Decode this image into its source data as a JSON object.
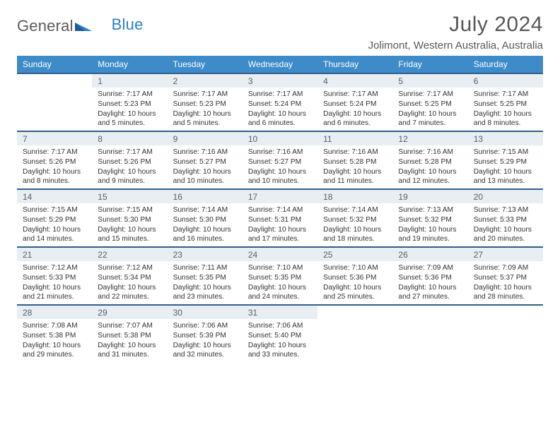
{
  "logo": {
    "word1": "General",
    "word2": "Blue"
  },
  "title": "July 2024",
  "location": "Jolimont, Western Australia, Australia",
  "day_headers": [
    "Sunday",
    "Monday",
    "Tuesday",
    "Wednesday",
    "Thursday",
    "Friday",
    "Saturday"
  ],
  "colors": {
    "header_bg": "#3d8cc9",
    "header_text": "#ffffff",
    "row_border": "#315f8a",
    "daynum_bg": "#e9eef3",
    "daynum_text": "#56606a",
    "title_text": "#585858",
    "logo_gray": "#5a5a5a",
    "logo_blue": "#2a7ec4",
    "body_text": "#333333"
  },
  "weeks": [
    [
      {
        "n": "",
        "sr": "",
        "ss": "",
        "d1": "",
        "d2": ""
      },
      {
        "n": "1",
        "sr": "Sunrise: 7:17 AM",
        "ss": "Sunset: 5:23 PM",
        "d1": "Daylight: 10 hours",
        "d2": "and 5 minutes."
      },
      {
        "n": "2",
        "sr": "Sunrise: 7:17 AM",
        "ss": "Sunset: 5:23 PM",
        "d1": "Daylight: 10 hours",
        "d2": "and 5 minutes."
      },
      {
        "n": "3",
        "sr": "Sunrise: 7:17 AM",
        "ss": "Sunset: 5:24 PM",
        "d1": "Daylight: 10 hours",
        "d2": "and 6 minutes."
      },
      {
        "n": "4",
        "sr": "Sunrise: 7:17 AM",
        "ss": "Sunset: 5:24 PM",
        "d1": "Daylight: 10 hours",
        "d2": "and 6 minutes."
      },
      {
        "n": "5",
        "sr": "Sunrise: 7:17 AM",
        "ss": "Sunset: 5:25 PM",
        "d1": "Daylight: 10 hours",
        "d2": "and 7 minutes."
      },
      {
        "n": "6",
        "sr": "Sunrise: 7:17 AM",
        "ss": "Sunset: 5:25 PM",
        "d1": "Daylight: 10 hours",
        "d2": "and 8 minutes."
      }
    ],
    [
      {
        "n": "7",
        "sr": "Sunrise: 7:17 AM",
        "ss": "Sunset: 5:26 PM",
        "d1": "Daylight: 10 hours",
        "d2": "and 8 minutes."
      },
      {
        "n": "8",
        "sr": "Sunrise: 7:17 AM",
        "ss": "Sunset: 5:26 PM",
        "d1": "Daylight: 10 hours",
        "d2": "and 9 minutes."
      },
      {
        "n": "9",
        "sr": "Sunrise: 7:16 AM",
        "ss": "Sunset: 5:27 PM",
        "d1": "Daylight: 10 hours",
        "d2": "and 10 minutes."
      },
      {
        "n": "10",
        "sr": "Sunrise: 7:16 AM",
        "ss": "Sunset: 5:27 PM",
        "d1": "Daylight: 10 hours",
        "d2": "and 10 minutes."
      },
      {
        "n": "11",
        "sr": "Sunrise: 7:16 AM",
        "ss": "Sunset: 5:28 PM",
        "d1": "Daylight: 10 hours",
        "d2": "and 11 minutes."
      },
      {
        "n": "12",
        "sr": "Sunrise: 7:16 AM",
        "ss": "Sunset: 5:28 PM",
        "d1": "Daylight: 10 hours",
        "d2": "and 12 minutes."
      },
      {
        "n": "13",
        "sr": "Sunrise: 7:15 AM",
        "ss": "Sunset: 5:29 PM",
        "d1": "Daylight: 10 hours",
        "d2": "and 13 minutes."
      }
    ],
    [
      {
        "n": "14",
        "sr": "Sunrise: 7:15 AM",
        "ss": "Sunset: 5:29 PM",
        "d1": "Daylight: 10 hours",
        "d2": "and 14 minutes."
      },
      {
        "n": "15",
        "sr": "Sunrise: 7:15 AM",
        "ss": "Sunset: 5:30 PM",
        "d1": "Daylight: 10 hours",
        "d2": "and 15 minutes."
      },
      {
        "n": "16",
        "sr": "Sunrise: 7:14 AM",
        "ss": "Sunset: 5:30 PM",
        "d1": "Daylight: 10 hours",
        "d2": "and 16 minutes."
      },
      {
        "n": "17",
        "sr": "Sunrise: 7:14 AM",
        "ss": "Sunset: 5:31 PM",
        "d1": "Daylight: 10 hours",
        "d2": "and 17 minutes."
      },
      {
        "n": "18",
        "sr": "Sunrise: 7:14 AM",
        "ss": "Sunset: 5:32 PM",
        "d1": "Daylight: 10 hours",
        "d2": "and 18 minutes."
      },
      {
        "n": "19",
        "sr": "Sunrise: 7:13 AM",
        "ss": "Sunset: 5:32 PM",
        "d1": "Daylight: 10 hours",
        "d2": "and 19 minutes."
      },
      {
        "n": "20",
        "sr": "Sunrise: 7:13 AM",
        "ss": "Sunset: 5:33 PM",
        "d1": "Daylight: 10 hours",
        "d2": "and 20 minutes."
      }
    ],
    [
      {
        "n": "21",
        "sr": "Sunrise: 7:12 AM",
        "ss": "Sunset: 5:33 PM",
        "d1": "Daylight: 10 hours",
        "d2": "and 21 minutes."
      },
      {
        "n": "22",
        "sr": "Sunrise: 7:12 AM",
        "ss": "Sunset: 5:34 PM",
        "d1": "Daylight: 10 hours",
        "d2": "and 22 minutes."
      },
      {
        "n": "23",
        "sr": "Sunrise: 7:11 AM",
        "ss": "Sunset: 5:35 PM",
        "d1": "Daylight: 10 hours",
        "d2": "and 23 minutes."
      },
      {
        "n": "24",
        "sr": "Sunrise: 7:10 AM",
        "ss": "Sunset: 5:35 PM",
        "d1": "Daylight: 10 hours",
        "d2": "and 24 minutes."
      },
      {
        "n": "25",
        "sr": "Sunrise: 7:10 AM",
        "ss": "Sunset: 5:36 PM",
        "d1": "Daylight: 10 hours",
        "d2": "and 25 minutes."
      },
      {
        "n": "26",
        "sr": "Sunrise: 7:09 AM",
        "ss": "Sunset: 5:36 PM",
        "d1": "Daylight: 10 hours",
        "d2": "and 27 minutes."
      },
      {
        "n": "27",
        "sr": "Sunrise: 7:09 AM",
        "ss": "Sunset: 5:37 PM",
        "d1": "Daylight: 10 hours",
        "d2": "and 28 minutes."
      }
    ],
    [
      {
        "n": "28",
        "sr": "Sunrise: 7:08 AM",
        "ss": "Sunset: 5:38 PM",
        "d1": "Daylight: 10 hours",
        "d2": "and 29 minutes."
      },
      {
        "n": "29",
        "sr": "Sunrise: 7:07 AM",
        "ss": "Sunset: 5:38 PM",
        "d1": "Daylight: 10 hours",
        "d2": "and 31 minutes."
      },
      {
        "n": "30",
        "sr": "Sunrise: 7:06 AM",
        "ss": "Sunset: 5:39 PM",
        "d1": "Daylight: 10 hours",
        "d2": "and 32 minutes."
      },
      {
        "n": "31",
        "sr": "Sunrise: 7:06 AM",
        "ss": "Sunset: 5:40 PM",
        "d1": "Daylight: 10 hours",
        "d2": "and 33 minutes."
      },
      {
        "n": "",
        "sr": "",
        "ss": "",
        "d1": "",
        "d2": ""
      },
      {
        "n": "",
        "sr": "",
        "ss": "",
        "d1": "",
        "d2": ""
      },
      {
        "n": "",
        "sr": "",
        "ss": "",
        "d1": "",
        "d2": ""
      }
    ]
  ]
}
